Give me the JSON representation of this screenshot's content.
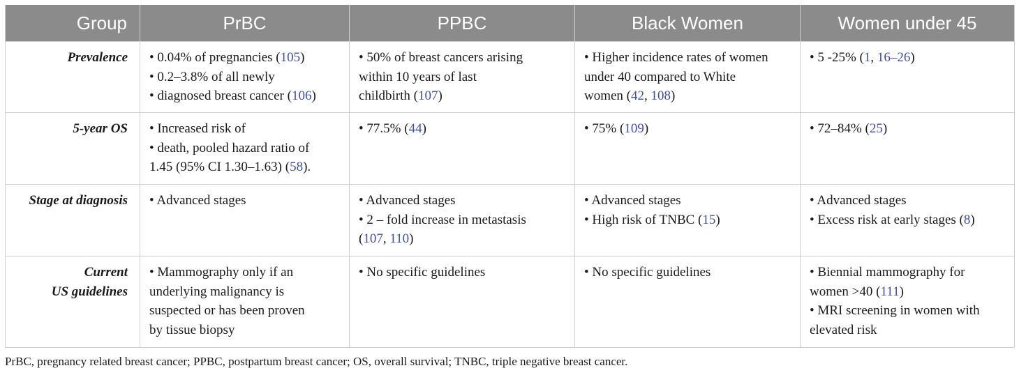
{
  "table": {
    "headers": [
      "Group",
      "PrBC",
      "PPBC",
      "Black Women",
      "Women under 45"
    ],
    "rows": [
      {
        "label": "Prevalence",
        "cells": [
          [
            "• 0.04% of pregnancies (",
            "105",
            ")",
            "• 0.2–3.8% of all newly",
            "• diagnosed breast cancer (",
            "106",
            ")"
          ],
          [
            "• 50% of breast cancers arising",
            "within 10 years of last",
            "childbirth (",
            "107",
            ")"
          ],
          [
            "• Higher incidence rates of women",
            "under 40 compared to White",
            "women (",
            "42",
            ", ",
            "108",
            ")"
          ],
          [
            "• 5 -25% (",
            "1",
            ", ",
            "16–26",
            ")"
          ]
        ]
      },
      {
        "label": "5-year OS",
        "cells": [
          [
            "• Increased risk of",
            "• death, pooled hazard ratio of",
            "1.45 (95% CI 1.30–1.63) (",
            "58",
            ")."
          ],
          [
            "• 77.5% (",
            "44",
            ")"
          ],
          [
            "• 75% (",
            "109",
            ")"
          ],
          [
            "• 72–84% (",
            "25",
            ")"
          ]
        ]
      },
      {
        "label": "Stage at diagnosis",
        "cells": [
          [
            "• Advanced stages"
          ],
          [
            "• Advanced stages",
            "• 2 – fold increase in metastasis",
            "(",
            "107",
            ", ",
            "110",
            ")"
          ],
          [
            "• Advanced stages",
            "• High risk of TNBC (",
            "15",
            ")"
          ],
          [
            "• Advanced stages",
            "• Excess risk at early stages (",
            "8",
            ")"
          ]
        ]
      },
      {
        "label_lines": [
          "Current",
          "US guidelines"
        ],
        "cells": [
          [
            "• Mammography only if an",
            "underlying malignancy is",
            "suspected or has been proven",
            "by tissue biopsy"
          ],
          [
            "• No specific guidelines"
          ],
          [
            "• No specific guidelines"
          ],
          [
            "• Biennial mammography for",
            "women >40 (",
            "111",
            ")",
            "• MRI screening in women with",
            "elevated risk"
          ]
        ]
      }
    ]
  },
  "footnote": "PrBC, pregnancy related breast cancer; PPBC, postpartum breast cancer; OS, overall survival; TNBC, triple negative breast cancer.",
  "colors": {
    "header_bg": "#8b8b8b",
    "header_text": "#ffffff",
    "grid": "#cfcfcf",
    "reference_link": "#3f4ea3"
  }
}
